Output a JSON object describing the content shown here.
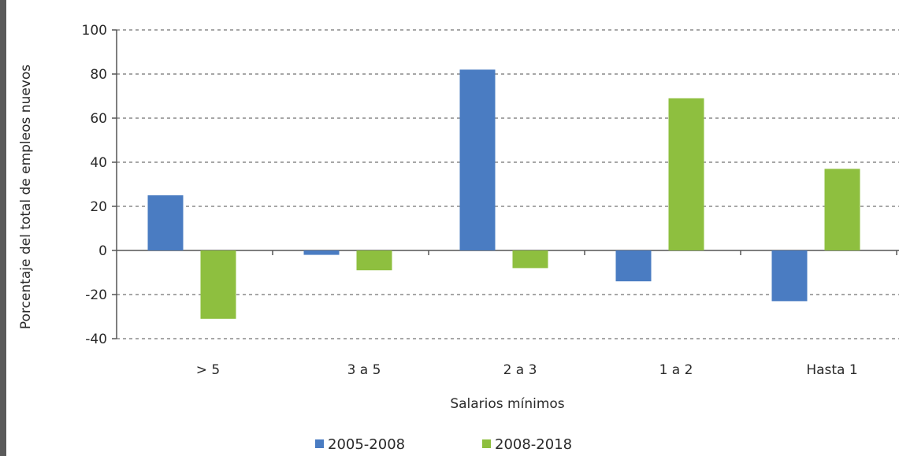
{
  "chart_data": {
    "type": "bar",
    "title": "",
    "xlabel": "Salarios mínimos",
    "ylabel": "Porcentaje del total de empleos nuevos",
    "categories": [
      "> 5",
      "3 a 5",
      "2 a 3",
      "1 a 2",
      "Hasta 1"
    ],
    "series": [
      {
        "name": "2005-2008",
        "color": "#4a7cc2",
        "values": [
          25,
          -2,
          82,
          -14,
          -23
        ]
      },
      {
        "name": "2008-2018",
        "color": "#8ebf3f",
        "values": [
          -31,
          -9,
          -8,
          69,
          37
        ]
      }
    ],
    "ylim": [
      -40,
      100
    ],
    "yticks": [
      100,
      80,
      60,
      40,
      20,
      0,
      -20,
      -40
    ],
    "grid": true,
    "legend_position": "bottom"
  }
}
